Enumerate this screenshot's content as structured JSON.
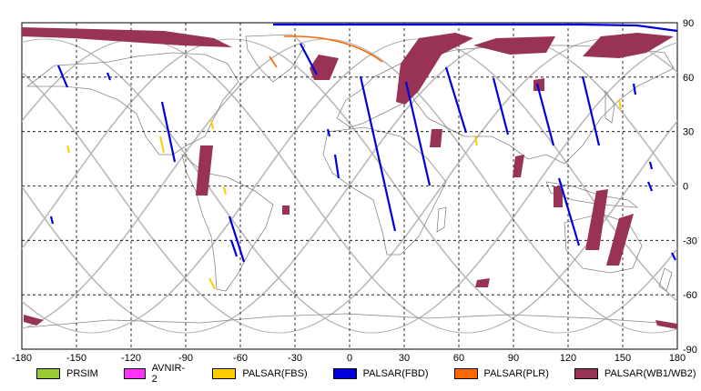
{
  "map": {
    "x_ticks": [
      "-180",
      "-150",
      "-120",
      "-90",
      "-60",
      "-30",
      "0",
      "30",
      "60",
      "90",
      "120",
      "150",
      "180"
    ],
    "y_ticks": [
      "90",
      "60",
      "30",
      "0",
      "-30",
      "-60",
      "-90"
    ],
    "grid": true,
    "projection": "equirectangular"
  },
  "legend": [
    {
      "label": "PRSIM",
      "color": "#99cc33"
    },
    {
      "label": "AVNIR-2",
      "color": "#ff33ff"
    },
    {
      "label": "PALSAR(FBS)",
      "color": "#ffcc00"
    },
    {
      "label": "PALSAR(FBD)",
      "color": "#0000dd"
    },
    {
      "label": "PALSAR(PLR)",
      "color": "#ff6600"
    },
    {
      "label": "PALSAR(WB1/WB2)",
      "color": "#993355"
    }
  ]
}
